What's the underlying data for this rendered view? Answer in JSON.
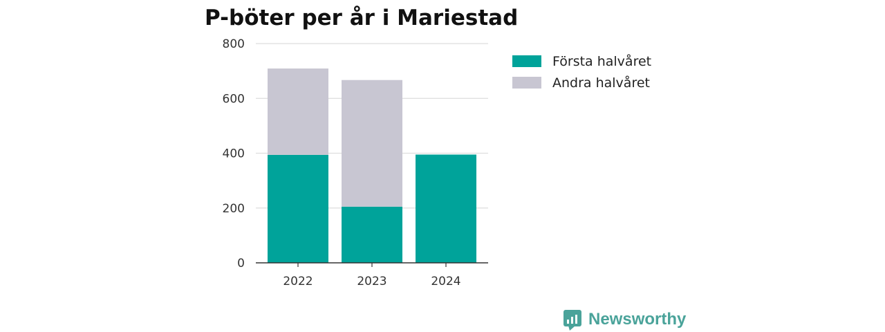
{
  "chart_data": {
    "type": "bar",
    "stacked": true,
    "title": "P-böter per år i Mariestad",
    "xlabel": "",
    "ylabel": "",
    "categories": [
      "2022",
      "2023",
      "2024"
    ],
    "series": [
      {
        "name": "Första halvåret",
        "values": [
          394,
          205,
          395
        ],
        "color": "#00a39a"
      },
      {
        "name": "Andra halvåret",
        "values": [
          315,
          462,
          0
        ],
        "color": "#c8c6d2"
      }
    ],
    "ylim": [
      0,
      800
    ],
    "yticks": [
      "0",
      "200",
      "400",
      "600",
      "800"
    ],
    "grid": true,
    "legend": "right"
  },
  "brand": {
    "name": "Newsworthy",
    "color": "#4aa39a",
    "icon": "newsworthy-logo-icon"
  }
}
